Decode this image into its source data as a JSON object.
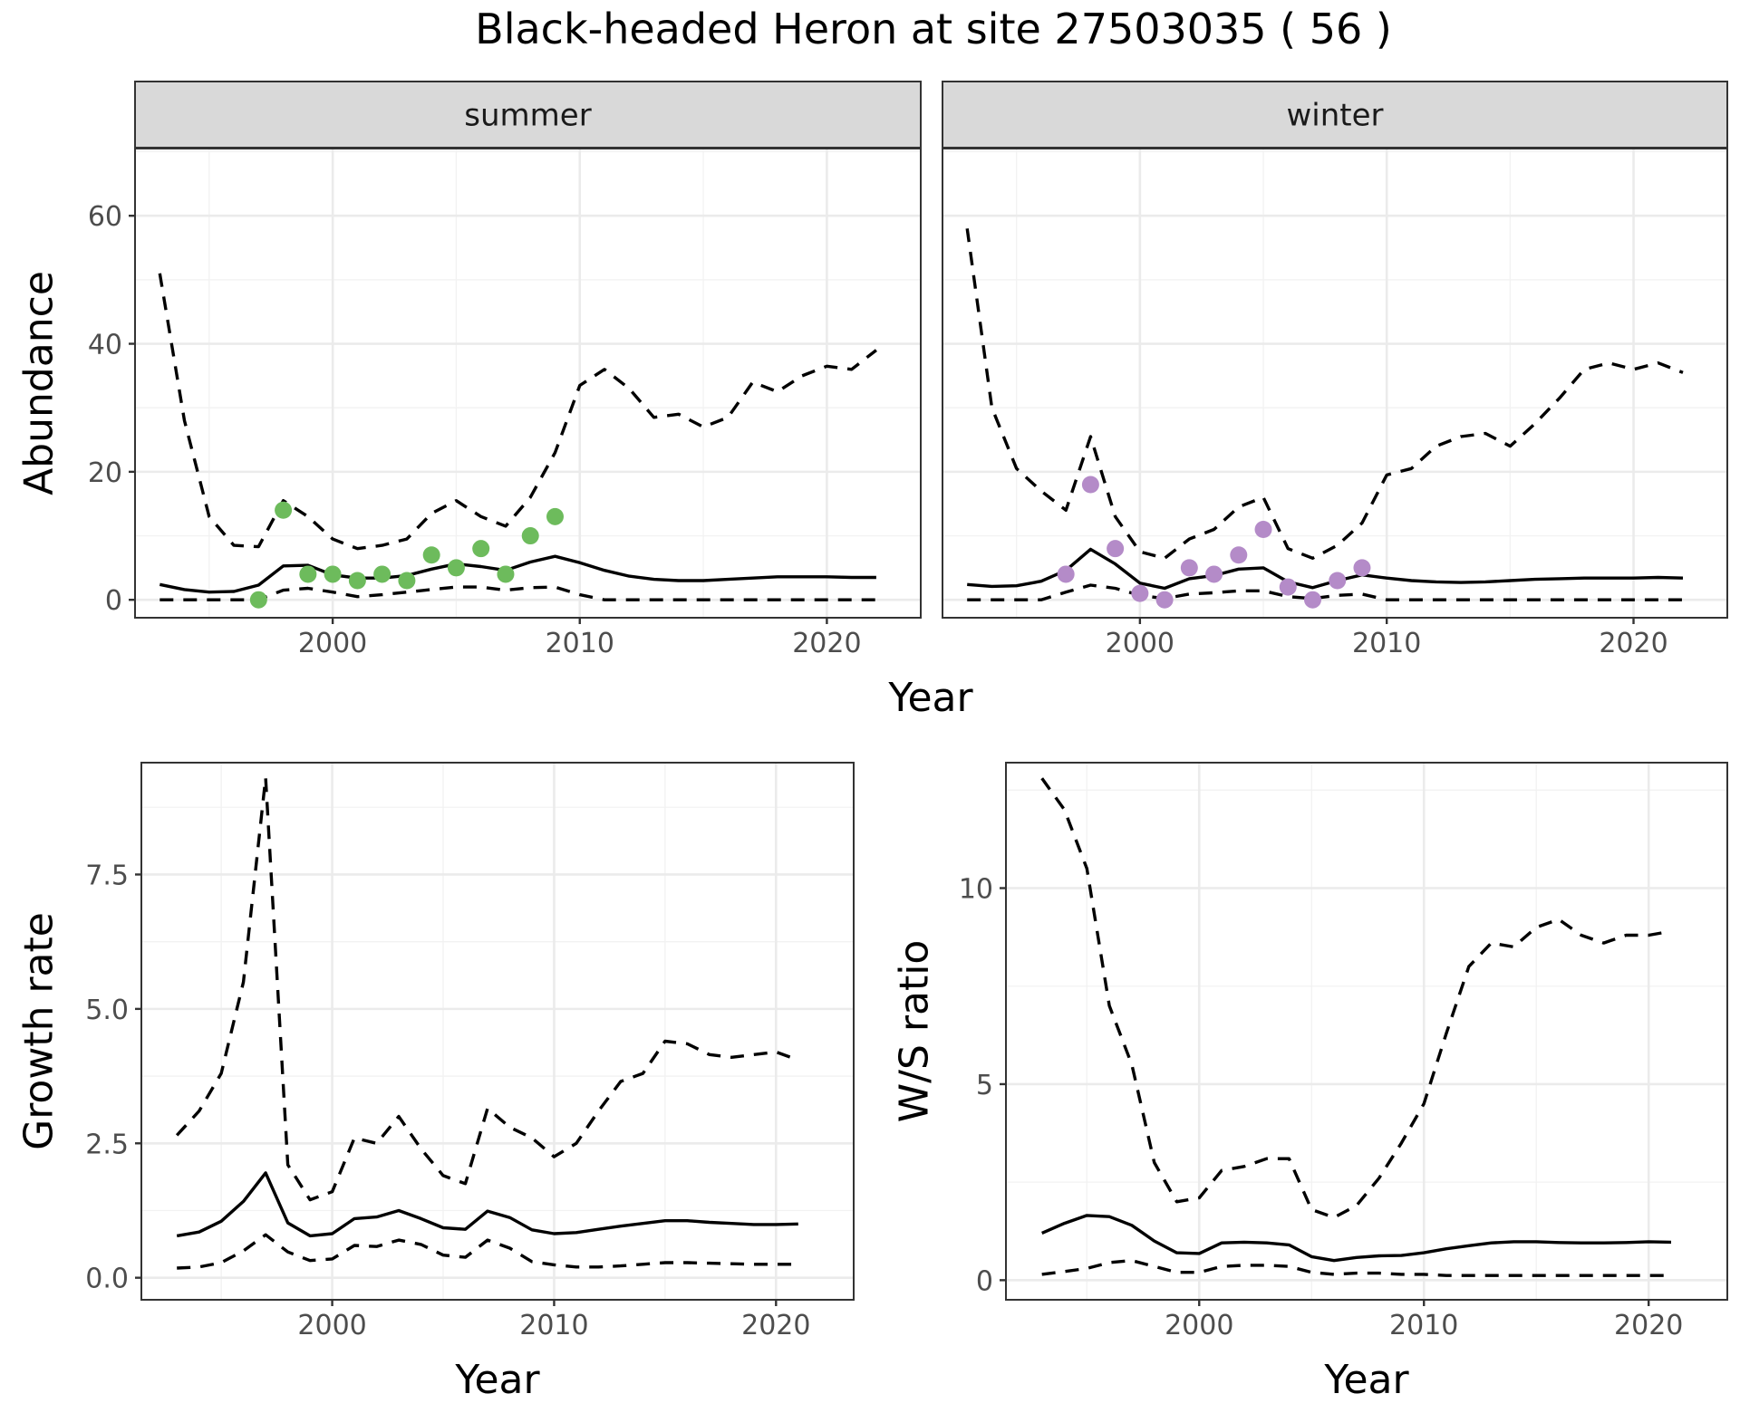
{
  "figure": {
    "title": "Black-headed Heron at site 27503035 ( 56 )"
  },
  "chart_data": [
    {
      "type": "line",
      "panel": "summer",
      "strip_label": "summer",
      "xlabel": "Year",
      "ylabel": "Abundance",
      "xlim": [
        1992.0,
        2023.8
      ],
      "ylim": [
        -2.8,
        70.5
      ],
      "x_ticks": [
        2000,
        2010,
        2020
      ],
      "y_ticks": [
        0,
        20,
        40,
        60
      ],
      "grid": true,
      "point_color": "#6dbb5c",
      "years": [
        1993,
        1994,
        1995,
        1996,
        1997,
        1998,
        1999,
        2000,
        2001,
        2002,
        2003,
        2004,
        2005,
        2006,
        2007,
        2008,
        2009,
        2010,
        2011,
        2012,
        2013,
        2014,
        2015,
        2016,
        2017,
        2018,
        2019,
        2020,
        2021,
        2022
      ],
      "series": [
        {
          "role": "mean",
          "values": [
            2.4,
            1.6,
            1.2,
            1.3,
            2.3,
            5.3,
            5.4,
            3.9,
            3.4,
            3.4,
            3.8,
            4.8,
            5.6,
            5.2,
            4.6,
            5.9,
            6.8,
            5.8,
            4.6,
            3.7,
            3.2,
            3.0,
            3.0,
            3.2,
            3.4,
            3.6,
            3.6,
            3.6,
            3.5,
            3.5
          ]
        },
        {
          "role": "upper",
          "values": [
            51,
            28,
            13,
            8.5,
            8.3,
            15.5,
            13,
            9.5,
            8,
            8.5,
            9.5,
            13.5,
            15.5,
            13,
            11.5,
            16,
            23,
            33.5,
            36,
            33,
            28.5,
            29,
            27,
            28.5,
            34,
            32.5,
            35,
            36.5,
            36,
            39
          ]
        },
        {
          "role": "lower",
          "values": [
            0,
            0,
            0,
            0,
            0,
            1.5,
            1.8,
            1.2,
            0.5,
            0.8,
            1.2,
            1.6,
            2.0,
            2.0,
            1.5,
            1.9,
            2.0,
            0.8,
            0,
            0,
            0,
            0,
            0,
            0,
            0,
            0,
            0,
            0,
            0,
            0
          ]
        }
      ],
      "points": [
        {
          "x": 1997,
          "y": 0
        },
        {
          "x": 1998,
          "y": 14
        },
        {
          "x": 1999,
          "y": 4
        },
        {
          "x": 2000,
          "y": 4
        },
        {
          "x": 2001,
          "y": 3
        },
        {
          "x": 2002,
          "y": 4
        },
        {
          "x": 2003,
          "y": 3
        },
        {
          "x": 2004,
          "y": 7
        },
        {
          "x": 2005,
          "y": 5
        },
        {
          "x": 2006,
          "y": 8
        },
        {
          "x": 2007,
          "y": 4
        },
        {
          "x": 2008,
          "y": 10
        },
        {
          "x": 2009,
          "y": 13
        }
      ]
    },
    {
      "type": "line",
      "panel": "winter",
      "strip_label": "winter",
      "xlabel": "Year",
      "ylabel": "Abundance",
      "xlim": [
        1992.0,
        2023.8
      ],
      "ylim": [
        -2.8,
        70.5
      ],
      "x_ticks": [
        2000,
        2010,
        2020
      ],
      "y_ticks": [
        0,
        20,
        40,
        60
      ],
      "grid": true,
      "point_color": "#b48bc8",
      "years": [
        1993,
        1994,
        1995,
        1996,
        1997,
        1998,
        1999,
        2000,
        2001,
        2002,
        2003,
        2004,
        2005,
        2006,
        2007,
        2008,
        2009,
        2010,
        2011,
        2012,
        2013,
        2014,
        2015,
        2016,
        2017,
        2018,
        2019,
        2020,
        2021,
        2022
      ],
      "series": [
        {
          "role": "mean",
          "values": [
            2.4,
            2.1,
            2.2,
            2.9,
            4.6,
            7.9,
            5.6,
            2.6,
            1.8,
            3.3,
            3.8,
            4.8,
            5.0,
            2.8,
            1.9,
            3.0,
            3.9,
            3.4,
            3.0,
            2.8,
            2.7,
            2.8,
            3.0,
            3.2,
            3.3,
            3.4,
            3.4,
            3.4,
            3.5,
            3.4
          ]
        },
        {
          "role": "upper",
          "values": [
            58,
            30,
            20.5,
            17,
            14,
            25.5,
            13,
            7.5,
            6.5,
            9.5,
            11,
            14.5,
            16,
            8,
            6.5,
            8.5,
            12,
            19.5,
            20.5,
            24,
            25.5,
            26,
            24,
            27.5,
            31.5,
            36,
            37,
            36,
            37,
            35.5
          ]
        },
        {
          "role": "lower",
          "values": [
            0,
            0,
            0,
            0,
            1.2,
            2.3,
            1.8,
            0.7,
            0.2,
            0.9,
            1.1,
            1.4,
            1.4,
            0.5,
            0.2,
            0.7,
            0.9,
            0,
            0,
            0,
            0,
            0,
            0,
            0,
            0,
            0,
            0,
            0,
            0,
            0
          ]
        }
      ],
      "points": [
        {
          "x": 1997,
          "y": 4
        },
        {
          "x": 1998,
          "y": 18
        },
        {
          "x": 1999,
          "y": 8
        },
        {
          "x": 2000,
          "y": 1
        },
        {
          "x": 2001,
          "y": 0
        },
        {
          "x": 2002,
          "y": 5
        },
        {
          "x": 2003,
          "y": 4
        },
        {
          "x": 2004,
          "y": 7
        },
        {
          "x": 2005,
          "y": 11
        },
        {
          "x": 2006,
          "y": 2
        },
        {
          "x": 2007,
          "y": 0
        },
        {
          "x": 2008,
          "y": 3
        },
        {
          "x": 2009,
          "y": 5
        }
      ]
    },
    {
      "type": "line",
      "panel": "growth",
      "xlabel": "Year",
      "ylabel": "Growth rate",
      "xlim": [
        1991.4,
        2023.5
      ],
      "ylim": [
        -0.41,
        9.58
      ],
      "x_ticks": [
        2000,
        2010,
        2020
      ],
      "y_ticks": [
        0.0,
        2.5,
        5.0,
        7.5
      ],
      "y_tick_labels": [
        "0.0",
        "2.5",
        "5.0",
        "7.5"
      ],
      "grid": true,
      "years": [
        1993,
        1994,
        1995,
        1996,
        1997,
        1998,
        1999,
        2000,
        2001,
        2002,
        2003,
        2004,
        2005,
        2006,
        2007,
        2008,
        2009,
        2010,
        2011,
        2012,
        2013,
        2014,
        2015,
        2016,
        2017,
        2018,
        2019,
        2020,
        2021
      ],
      "series": [
        {
          "role": "mean",
          "values": [
            0.78,
            0.85,
            1.05,
            1.42,
            1.95,
            1.02,
            0.78,
            0.82,
            1.1,
            1.13,
            1.25,
            1.1,
            0.93,
            0.9,
            1.24,
            1.12,
            0.89,
            0.82,
            0.84,
            0.9,
            0.96,
            1.01,
            1.06,
            1.06,
            1.03,
            1.01,
            0.99,
            0.99,
            1.0
          ]
        },
        {
          "role": "upper",
          "values": [
            2.65,
            3.1,
            3.8,
            5.5,
            9.3,
            2.1,
            1.45,
            1.6,
            2.6,
            2.5,
            3.0,
            2.4,
            1.9,
            1.75,
            3.15,
            2.8,
            2.6,
            2.25,
            2.5,
            3.1,
            3.65,
            3.8,
            4.4,
            4.35,
            4.15,
            4.1,
            4.15,
            4.2,
            4.05
          ]
        },
        {
          "role": "lower",
          "values": [
            0.18,
            0.2,
            0.28,
            0.5,
            0.8,
            0.48,
            0.32,
            0.35,
            0.6,
            0.58,
            0.7,
            0.62,
            0.42,
            0.38,
            0.7,
            0.55,
            0.3,
            0.24,
            0.2,
            0.2,
            0.22,
            0.25,
            0.28,
            0.28,
            0.27,
            0.26,
            0.25,
            0.25,
            0.25
          ]
        }
      ]
    },
    {
      "type": "line",
      "panel": "ratio",
      "xlabel": "Year",
      "ylabel": "W/S ratio",
      "xlim": [
        1991.4,
        2023.5
      ],
      "ylim": [
        -0.5,
        13.2
      ],
      "x_ticks": [
        2000,
        2010,
        2020
      ],
      "y_ticks": [
        0,
        5,
        10
      ],
      "grid": true,
      "years": [
        1993,
        1994,
        1995,
        1996,
        1997,
        1998,
        1999,
        2000,
        2001,
        2002,
        2003,
        2004,
        2005,
        2006,
        2007,
        2008,
        2009,
        2010,
        2011,
        2012,
        2013,
        2014,
        2015,
        2016,
        2017,
        2018,
        2019,
        2020,
        2021
      ],
      "series": [
        {
          "role": "mean",
          "values": [
            1.2,
            1.45,
            1.65,
            1.62,
            1.4,
            1.0,
            0.7,
            0.68,
            0.95,
            0.97,
            0.95,
            0.9,
            0.6,
            0.5,
            0.58,
            0.62,
            0.63,
            0.7,
            0.8,
            0.88,
            0.95,
            0.98,
            0.98,
            0.96,
            0.95,
            0.95,
            0.96,
            0.98,
            0.97
          ]
        },
        {
          "role": "upper",
          "values": [
            12.8,
            12.0,
            10.5,
            7.0,
            5.5,
            3.0,
            2.0,
            2.1,
            2.8,
            2.9,
            3.1,
            3.1,
            1.8,
            1.6,
            1.9,
            2.6,
            3.5,
            4.5,
            6.3,
            8.0,
            8.6,
            8.5,
            9.0,
            9.2,
            8.8,
            8.6,
            8.8,
            8.8,
            8.9
          ]
        },
        {
          "role": "lower",
          "values": [
            0.15,
            0.22,
            0.3,
            0.45,
            0.5,
            0.35,
            0.2,
            0.2,
            0.35,
            0.38,
            0.38,
            0.35,
            0.2,
            0.15,
            0.18,
            0.18,
            0.15,
            0.15,
            0.12,
            0.12,
            0.12,
            0.12,
            0.12,
            0.12,
            0.12,
            0.12,
            0.12,
            0.12,
            0.12
          ]
        }
      ]
    }
  ]
}
